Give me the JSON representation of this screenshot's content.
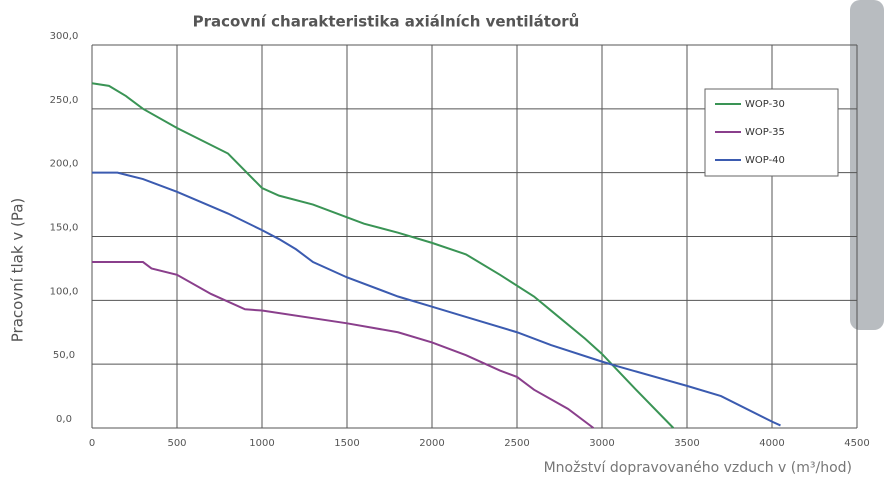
{
  "chart_data": {
    "type": "line",
    "title": "Pracovní charakteristika axiálních ventilátorů",
    "x_label": "Množství dopravovaného vzduch v (m³/hod)",
    "y_label": "Pracovní tlak v (Pa)",
    "xlim": [
      0,
      4500
    ],
    "xticks": [
      0,
      500,
      1000,
      1500,
      2000,
      2500,
      3000,
      3500,
      4000,
      4500
    ],
    "ylim": [
      0,
      300
    ],
    "yticks": [
      {
        "value": 0,
        "label": "0,0"
      },
      {
        "value": 50,
        "label": "50,0"
      },
      {
        "value": 100,
        "label": "100,0"
      },
      {
        "value": 150,
        "label": "150,0"
      },
      {
        "value": 200,
        "label": "200,0"
      },
      {
        "value": 250,
        "label": "250,0"
      },
      {
        "value": 300,
        "label": "300,0"
      }
    ],
    "grid": true,
    "legend": "upper right",
    "series": [
      {
        "name": "WOP-30",
        "color": "#3a9455",
        "x": [
          0,
          100,
          200,
          300,
          500,
          800,
          1000,
          1100,
          1300,
          1500,
          1600,
          1800,
          2000,
          2200,
          2400,
          2600,
          2700,
          2900,
          3000,
          3200,
          3420
        ],
        "values": [
          270,
          268,
          260,
          250,
          235,
          215,
          188,
          182,
          175,
          165,
          160,
          153,
          145,
          136,
          120,
          103,
          92,
          70,
          58,
          30,
          0
        ]
      },
      {
        "name": "WOP-35",
        "color": "#8a3f8c",
        "x": [
          0,
          300,
          350,
          500,
          700,
          900,
          1000,
          1500,
          1800,
          2000,
          2200,
          2400,
          2500,
          2600,
          2800,
          2950
        ],
        "values": [
          130,
          130,
          125,
          120,
          105,
          93,
          92,
          82,
          75,
          67,
          57,
          45,
          40,
          30,
          15,
          0
        ]
      },
      {
        "name": "WOP-40",
        "color": "#3b5bb0",
        "x": [
          0,
          150,
          300,
          500,
          800,
          1000,
          1100,
          1200,
          1300,
          1500,
          1800,
          2000,
          2200,
          2500,
          2700,
          3000,
          3100,
          3500,
          3700,
          4000,
          4050
        ],
        "values": [
          200,
          200,
          195,
          185,
          168,
          155,
          148,
          140,
          130,
          118,
          103,
          95,
          87,
          75,
          65,
          52,
          48,
          33,
          25,
          5,
          2
        ]
      }
    ]
  }
}
